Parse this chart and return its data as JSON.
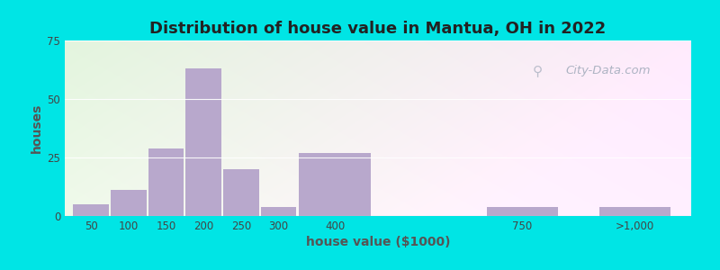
{
  "title": "Distribution of house value in Mantua, OH in 2022",
  "xlabel": "house value ($1000)",
  "ylabel": "houses",
  "bar_color": "#b8a8cc",
  "background_outer": "#00e5e5",
  "ylim": [
    0,
    75
  ],
  "yticks": [
    0,
    25,
    50,
    75
  ],
  "title_fontsize": 13,
  "axis_label_fontsize": 10,
  "watermark_text": "City-Data.com",
  "bar_positions": [
    0,
    1,
    2,
    3,
    4,
    5,
    6,
    7,
    8
  ],
  "bar_heights": [
    5,
    11,
    29,
    63,
    20,
    4,
    27,
    4,
    4
  ],
  "bar_widths": [
    1,
    1,
    1,
    1,
    1,
    1,
    2,
    1,
    2
  ],
  "xtick_positions": [
    0.5,
    1.5,
    2.5,
    3.5,
    4.5,
    5.5,
    7.0,
    10.5,
    14.5
  ],
  "xtick_labels": [
    "50",
    "100",
    "150",
    "200",
    "250",
    "300",
    "400",
    "750",
    ">1,000"
  ],
  "xlim": [
    -0.2,
    16.5
  ]
}
